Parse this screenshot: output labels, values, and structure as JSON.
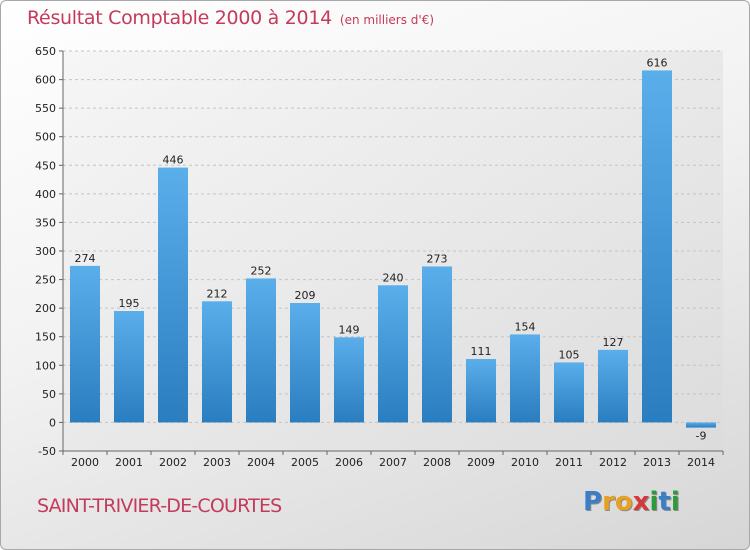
{
  "title": "Résultat Comptable 2000 à 2014",
  "unit": "(en milliers d'€)",
  "commune": "SAINT-TRIVIER-DE-COURTES",
  "logo": {
    "letters": [
      "P",
      "r",
      "o",
      "x",
      "i",
      "t",
      "i"
    ],
    "colors": [
      "#3a7ec8",
      "#e8a020",
      "#e8a020",
      "#d43a3a",
      "#2e9a3a",
      "#3a7ec8",
      "#2e9a3a"
    ]
  },
  "chart_data": {
    "type": "bar",
    "categories": [
      "2000",
      "2001",
      "2002",
      "2003",
      "2004",
      "2005",
      "2006",
      "2007",
      "2008",
      "2009",
      "2010",
      "2011",
      "2012",
      "2013",
      "2014"
    ],
    "values": [
      274,
      195,
      446,
      212,
      252,
      209,
      149,
      240,
      273,
      111,
      154,
      105,
      127,
      616,
      -9
    ],
    "ylim": [
      -50,
      650
    ],
    "yticks": [
      -50,
      0,
      50,
      100,
      150,
      200,
      250,
      300,
      350,
      400,
      450,
      500,
      550,
      600,
      650
    ],
    "grid": true,
    "bar_color": "#4a9ee0"
  }
}
